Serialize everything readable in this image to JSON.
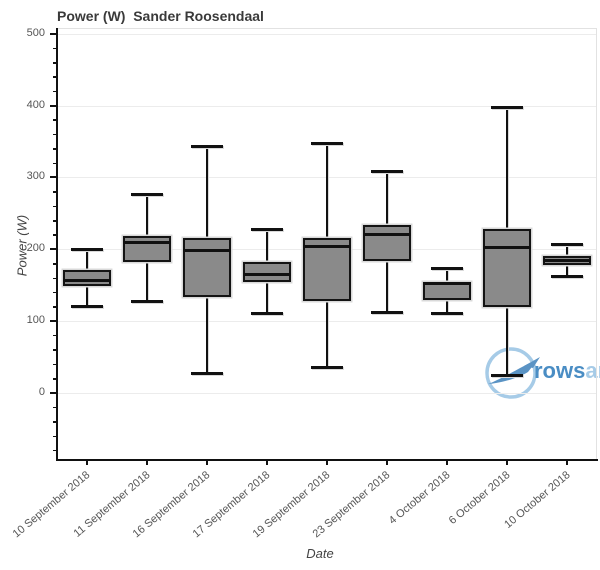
{
  "figure": {
    "watermark": {
      "brand": "rowsandall-logo",
      "text_dark": "rows",
      "text_light": "andall",
      "color_dark": "#4a8dc4",
      "color_light": "#a6cbe7"
    }
  },
  "chart_data": {
    "type": "box",
    "title": "Power (W)  Sander Roosendaal",
    "xlabel": "Date",
    "ylabel": "Power (W)",
    "ylim": [
      -92,
      508
    ],
    "yticks": [
      0,
      100,
      200,
      300,
      400,
      500
    ],
    "minor_tick_step": 20,
    "grid": true,
    "legend": "none",
    "colors": {
      "box_fill": "#8a8a8a",
      "box_edge": "#141414",
      "halo": "#d9d9d9",
      "gridline": "#ececec",
      "plot_border": "#e2e2e2",
      "axis": "#111111",
      "tick_label": "#555555"
    },
    "categories": [
      "10 September 2018",
      "11 September 2018",
      "16 September 2018",
      "17 September 2018",
      "19 September 2018",
      "23 September 2018",
      "4 October 2018",
      "6 October 2018",
      "10 October 2018"
    ],
    "series": [
      {
        "name": "Power (W)",
        "boxes": [
          {
            "low": 120,
            "q1": 149,
            "median": 157,
            "q3": 171,
            "high": 200
          },
          {
            "low": 128,
            "q1": 182,
            "median": 209,
            "q3": 219,
            "high": 276
          },
          {
            "low": 27,
            "q1": 133,
            "median": 199,
            "q3": 216,
            "high": 343
          },
          {
            "low": 110,
            "q1": 154,
            "median": 165,
            "q3": 183,
            "high": 227
          },
          {
            "low": 35,
            "q1": 128,
            "median": 204,
            "q3": 216,
            "high": 347
          },
          {
            "low": 112,
            "q1": 184,
            "median": 221,
            "q3": 234,
            "high": 308
          },
          {
            "low": 110,
            "q1": 129,
            "median": 152,
            "q3": 155,
            "high": 173
          },
          {
            "low": 24,
            "q1": 119,
            "median": 203,
            "q3": 228,
            "high": 397
          },
          {
            "low": 162,
            "q1": 178,
            "median": 184,
            "q3": 191,
            "high": 207
          }
        ]
      }
    ]
  }
}
